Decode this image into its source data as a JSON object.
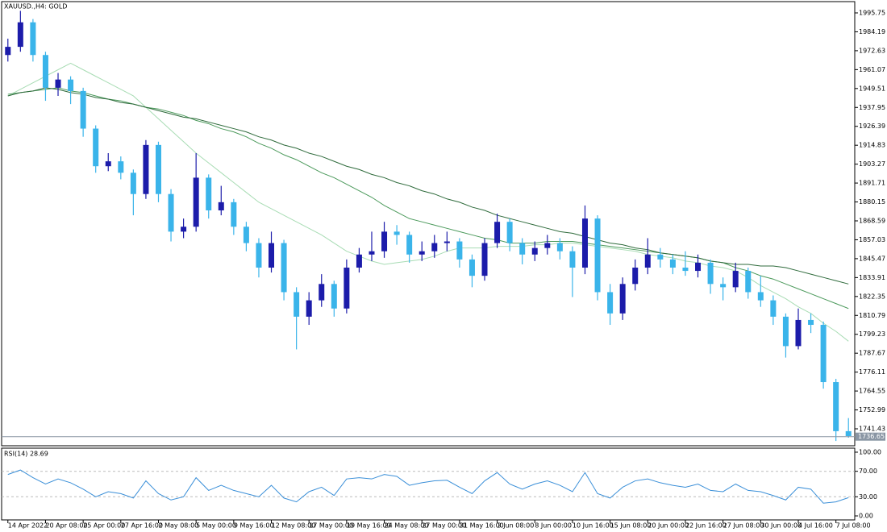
{
  "chart_data": [
    {
      "type": "candlestick",
      "title": "XAUUSD.,H4:  GOLD",
      "categories": [
        "14 Apr 2022",
        null,
        null,
        "20 Apr 08:00",
        null,
        null,
        "25 Apr 00:00",
        null,
        null,
        "27 Apr 16:00",
        null,
        null,
        "2 May 08:00",
        null,
        null,
        "5 May 00:00",
        null,
        null,
        "9 May 16:00",
        null,
        null,
        "12 May 08:00",
        null,
        null,
        "17 May 00:00",
        null,
        null,
        "19 May 16:00",
        null,
        null,
        "24 May 08:00",
        null,
        null,
        "27 May 00:00",
        null,
        null,
        "31 May 16:00",
        null,
        null,
        "3 Jun 08:00",
        null,
        null,
        "8 Jun 00:00",
        null,
        null,
        "10 Jun 16:00",
        null,
        null,
        "15 Jun 08:00",
        null,
        null,
        "20 Jun 00:00",
        null,
        null,
        "22 Jun 16:00",
        null,
        null,
        "27 Jun 08:00",
        null,
        null,
        "30 Jun 00:00",
        null,
        null,
        "4 Jul 16:00",
        null,
        null,
        "7 Jul 08:00",
        null
      ],
      "open": [
        1970,
        1975,
        1990,
        1970,
        1950,
        1955,
        1948,
        1925,
        1902,
        1905,
        1898,
        1885,
        1915,
        1885,
        1862,
        1865,
        1895,
        1875,
        1880,
        1865,
        1855,
        1840,
        1855,
        1825,
        1810,
        1820,
        1830,
        1815,
        1840,
        1848,
        1850,
        1862,
        1860,
        1848,
        1850,
        1855,
        1856,
        1845,
        1835,
        1855,
        1868,
        1855,
        1848,
        1852,
        1855,
        1850,
        1840,
        1870,
        1825,
        1812,
        1830,
        1840,
        1848,
        1845,
        1840,
        1838,
        1843,
        1830,
        1828,
        1838,
        1825,
        1820,
        1810,
        1792,
        1808,
        1805,
        1770,
        1740
      ],
      "high": [
        1980,
        1997,
        1992,
        1972,
        1959,
        1957,
        1950,
        1927,
        1910,
        1908,
        1900,
        1918,
        1917,
        1888,
        1870,
        1910,
        1897,
        1890,
        1882,
        1868,
        1858,
        1862,
        1857,
        1828,
        1825,
        1836,
        1832,
        1845,
        1852,
        1862,
        1868,
        1866,
        1862,
        1856,
        1860,
        1862,
        1858,
        1848,
        1858,
        1873,
        1870,
        1858,
        1856,
        1860,
        1858,
        1853,
        1878,
        1872,
        1830,
        1834,
        1845,
        1858,
        1852,
        1848,
        1850,
        1848,
        1845,
        1834,
        1843,
        1840,
        1835,
        1823,
        1812,
        1815,
        1812,
        1807,
        1772,
        1748
      ],
      "low": [
        1966,
        1972,
        1966,
        1942,
        1945,
        1940,
        1920,
        1898,
        1899,
        1894,
        1872,
        1882,
        1880,
        1856,
        1858,
        1862,
        1870,
        1872,
        1860,
        1850,
        1834,
        1837,
        1820,
        1790,
        1805,
        1816,
        1810,
        1812,
        1837,
        1844,
        1846,
        1854,
        1843,
        1844,
        1846,
        1850,
        1840,
        1828,
        1832,
        1852,
        1850,
        1842,
        1844,
        1848,
        1845,
        1822,
        1836,
        1820,
        1805,
        1808,
        1826,
        1836,
        1840,
        1836,
        1835,
        1834,
        1824,
        1820,
        1825,
        1821,
        1816,
        1805,
        1785,
        1790,
        1800,
        1766,
        1734,
        1736
      ],
      "close": [
        1975,
        1990,
        1970,
        1950,
        1955,
        1948,
        1925,
        1902,
        1905,
        1898,
        1885,
        1915,
        1885,
        1862,
        1865,
        1895,
        1875,
        1880,
        1865,
        1855,
        1840,
        1855,
        1825,
        1810,
        1820,
        1830,
        1815,
        1840,
        1848,
        1850,
        1862,
        1860,
        1848,
        1850,
        1855,
        1856,
        1845,
        1835,
        1855,
        1868,
        1855,
        1848,
        1852,
        1855,
        1850,
        1840,
        1870,
        1825,
        1812,
        1830,
        1840,
        1848,
        1845,
        1840,
        1838,
        1843,
        1830,
        1828,
        1838,
        1825,
        1820,
        1810,
        1792,
        1808,
        1805,
        1770,
        1740,
        1737
      ],
      "up_color": "#1c1caa",
      "down_color": "#3ab4ea",
      "series": [
        {
          "color": "#a8dcb4",
          "values": [
            1945,
            1949,
            1953,
            1957,
            1961,
            1965,
            1961,
            1957,
            1953,
            1949,
            1945,
            1938,
            1931,
            1924,
            1917,
            1910,
            1904,
            1898,
            1892,
            1886,
            1880,
            1876,
            1872,
            1868,
            1864,
            1860,
            1855,
            1850,
            1847,
            1844,
            1842,
            1843,
            1844,
            1845,
            1847,
            1850,
            1852,
            1852,
            1852,
            1853,
            1853,
            1853,
            1854,
            1854,
            1855,
            1855,
            1854,
            1853,
            1852,
            1851,
            1850,
            1848,
            1847,
            1846,
            1844,
            1843,
            1841,
            1840,
            1838,
            1834,
            1829,
            1825,
            1821,
            1816,
            1812,
            1806,
            1801,
            1795
          ]
        },
        {
          "color": "#4c9a5c",
          "values": [
            1946,
            1947,
            1948,
            1949,
            1950,
            1948,
            1947,
            1945,
            1943,
            1942,
            1940,
            1938,
            1937,
            1935,
            1933,
            1930,
            1928,
            1925,
            1923,
            1920,
            1916,
            1913,
            1909,
            1906,
            1902,
            1898,
            1895,
            1891,
            1887,
            1883,
            1878,
            1874,
            1870,
            1868,
            1866,
            1864,
            1862,
            1860,
            1858,
            1857,
            1855,
            1855,
            1855,
            1856,
            1856,
            1856,
            1855,
            1854,
            1853,
            1852,
            1851,
            1850,
            1849,
            1848,
            1847,
            1846,
            1844,
            1843,
            1840,
            1838,
            1835,
            1833,
            1830,
            1827,
            1824,
            1821,
            1818,
            1815
          ]
        },
        {
          "color": "#2f6b3c",
          "values": [
            1945,
            1947,
            1948,
            1950,
            1949,
            1947,
            1946,
            1944,
            1943,
            1941,
            1940,
            1938,
            1936,
            1934,
            1932,
            1931,
            1929,
            1927,
            1925,
            1923,
            1920,
            1918,
            1915,
            1913,
            1910,
            1908,
            1905,
            1902,
            1900,
            1897,
            1895,
            1892,
            1890,
            1887,
            1885,
            1882,
            1880,
            1877,
            1875,
            1872,
            1870,
            1868,
            1866,
            1864,
            1862,
            1861,
            1859,
            1857,
            1855,
            1854,
            1852,
            1851,
            1849,
            1848,
            1847,
            1846,
            1844,
            1843,
            1842,
            1842,
            1841,
            1841,
            1840,
            1838,
            1836,
            1834,
            1832,
            1830
          ]
        }
      ],
      "last_price": 1736.65,
      "ylim": [
        1731.08,
        2002.65
      ],
      "yticks": [
        1995.75,
        1984.19,
        1972.63,
        1961.07,
        1949.51,
        1937.95,
        1926.39,
        1914.83,
        1903.27,
        1891.71,
        1880.15,
        1868.59,
        1857.03,
        1845.47,
        1833.91,
        1822.35,
        1810.79,
        1799.23,
        1787.67,
        1776.11,
        1764.55,
        1752.99,
        1741.43
      ]
    },
    {
      "type": "line",
      "title": "RSI(14) 28.69",
      "color": "#3a8fd8",
      "values": [
        65,
        72,
        60,
        50,
        58,
        52,
        42,
        30,
        38,
        35,
        28,
        55,
        35,
        25,
        30,
        60,
        40,
        48,
        40,
        35,
        30,
        48,
        28,
        22,
        38,
        45,
        32,
        58,
        60,
        58,
        65,
        62,
        48,
        52,
        55,
        56,
        45,
        35,
        55,
        68,
        50,
        42,
        50,
        55,
        48,
        38,
        68,
        35,
        28,
        45,
        55,
        58,
        52,
        48,
        45,
        50,
        40,
        38,
        50,
        40,
        38,
        32,
        25,
        45,
        42,
        20,
        22,
        28.69
      ],
      "ylim": [
        -6.3,
        106.3
      ],
      "yticks": [
        {
          "value": 0,
          "label": "0.00"
        },
        {
          "value": 30,
          "label": "30.00"
        },
        {
          "value": 70,
          "label": "70.00"
        },
        {
          "value": 100,
          "label": "100.00"
        }
      ],
      "levels": [
        30,
        70
      ]
    }
  ]
}
